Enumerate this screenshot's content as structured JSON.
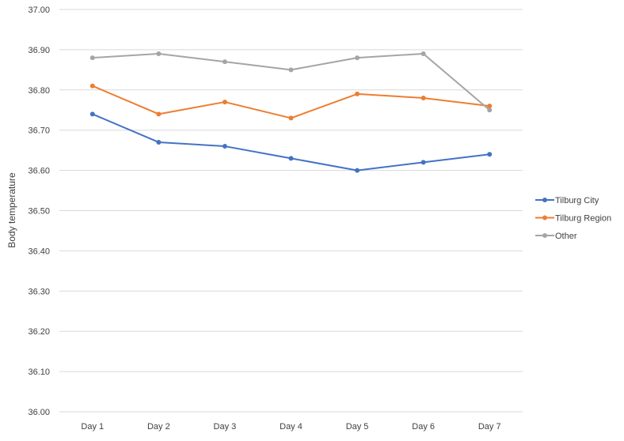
{
  "colors": {
    "series": [
      "#4472C4",
      "#ED7D31",
      "#A5A5A5"
    ],
    "gridline": "#D9D9D9",
    "text": "#404040",
    "background": "#FFFFFF"
  },
  "chart_data": {
    "type": "line",
    "title": "",
    "xlabel": "",
    "ylabel": "Body temperature",
    "categories": [
      "Day 1",
      "Day 2",
      "Day 3",
      "Day 4",
      "Day 5",
      "Day 6",
      "Day 7"
    ],
    "y_ticks": [
      "36.00",
      "36.10",
      "36.20",
      "36.30",
      "36.40",
      "36.50",
      "36.60",
      "36.70",
      "36.80",
      "36.90",
      "37.00"
    ],
    "ylim": [
      36.0,
      37.0
    ],
    "grid": true,
    "legend_position": "right",
    "markers": true,
    "series": [
      {
        "name": "Tilburg City",
        "values": [
          36.74,
          36.67,
          36.66,
          36.63,
          36.6,
          36.62,
          36.64
        ]
      },
      {
        "name": "Tilburg Region",
        "values": [
          36.81,
          36.74,
          36.77,
          36.73,
          36.79,
          36.78,
          36.76
        ]
      },
      {
        "name": "Other",
        "values": [
          36.88,
          36.89,
          36.87,
          36.85,
          36.88,
          36.89,
          36.75
        ]
      }
    ]
  }
}
